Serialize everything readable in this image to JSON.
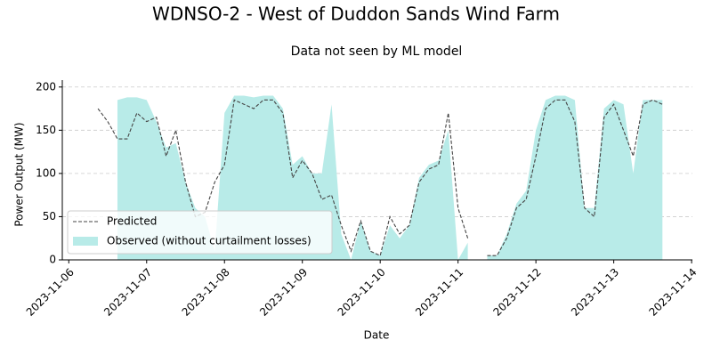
{
  "chart_data": {
    "type": "line-area",
    "title": "WDNSO-2 - West of Duddon Sands Wind Farm",
    "subtitle": "Data not seen by ML model",
    "x_label": "Date",
    "y_label": "Power Output (MW)",
    "xlim": [
      "2023-11-05T22:00",
      "2023-11-14T00:15"
    ],
    "xticks": [
      "2023-11-06",
      "2023-11-07",
      "2023-11-08",
      "2023-11-09",
      "2023-11-10",
      "2023-11-11",
      "2023-11-12",
      "2023-11-13",
      "2023-11-14"
    ],
    "ylim": [
      0,
      208
    ],
    "yticks": [
      0,
      50,
      100,
      150,
      200
    ],
    "grid": true,
    "legend": "lower left",
    "x": [
      "2023-11-06T09:00",
      "2023-11-06T12:00",
      "2023-11-06T15:00",
      "2023-11-06T18:00",
      "2023-11-06T21:00",
      "2023-11-07T00:00",
      "2023-11-07T03:00",
      "2023-11-07T06:00",
      "2023-11-07T09:00",
      "2023-11-07T12:00",
      "2023-11-07T15:00",
      "2023-11-07T18:00",
      "2023-11-07T21:00",
      "2023-11-08T00:00",
      "2023-11-08T03:00",
      "2023-11-08T06:00",
      "2023-11-08T09:00",
      "2023-11-08T12:00",
      "2023-11-08T15:00",
      "2023-11-08T18:00",
      "2023-11-08T21:00",
      "2023-11-09T00:00",
      "2023-11-09T03:00",
      "2023-11-09T06:00",
      "2023-11-09T09:00",
      "2023-11-09T12:00",
      "2023-11-09T15:00",
      "2023-11-09T18:00",
      "2023-11-09T21:00",
      "2023-11-10T00:00",
      "2023-11-10T03:00",
      "2023-11-10T06:00",
      "2023-11-10T09:00",
      "2023-11-10T12:00",
      "2023-11-10T15:00",
      "2023-11-10T18:00",
      "2023-11-10T21:00",
      "2023-11-11T00:00",
      "2023-11-11T03:00",
      "2023-11-11T06:00",
      "2023-11-11T09:00",
      "2023-11-11T12:00",
      "2023-11-11T15:00",
      "2023-11-11T18:00",
      "2023-11-11T21:00",
      "2023-11-12T00:00",
      "2023-11-12T03:00",
      "2023-11-12T06:00",
      "2023-11-12T09:00",
      "2023-11-12T12:00",
      "2023-11-12T15:00",
      "2023-11-12T18:00",
      "2023-11-12T21:00",
      "2023-11-13T00:00",
      "2023-11-13T03:00",
      "2023-11-13T06:00",
      "2023-11-13T09:00",
      "2023-11-13T12:00",
      "2023-11-13T15:00"
    ],
    "series": [
      {
        "name": "Predicted",
        "color": "#444444",
        "style": "dashed",
        "values": [
          175,
          160,
          140,
          140,
          170,
          160,
          165,
          120,
          150,
          90,
          50,
          55,
          90,
          110,
          185,
          180,
          175,
          185,
          185,
          170,
          95,
          115,
          100,
          70,
          75,
          40,
          10,
          45,
          10,
          5,
          50,
          30,
          40,
          90,
          105,
          110,
          170,
          60,
          25,
          null,
          5,
          5,
          25,
          60,
          70,
          120,
          175,
          185,
          185,
          160,
          60,
          50,
          165,
          180,
          150,
          120,
          180,
          185,
          180
        ]
      },
      {
        "name": "Observed (without curtailment losses)",
        "color": "#b8ebe8",
        "style": "area",
        "values": [
          185,
          null,
          185,
          188,
          188,
          185,
          160,
          130,
          135,
          90,
          60,
          50,
          10,
          170,
          190,
          190,
          188,
          190,
          190,
          175,
          110,
          120,
          100,
          100,
          180,
          30,
          0,
          45,
          10,
          5,
          40,
          25,
          40,
          95,
          110,
          115,
          150,
          0,
          20,
          null,
          5,
          5,
          30,
          65,
          80,
          150,
          185,
          190,
          190,
          185,
          60,
          60,
          175,
          185,
          180,
          100,
          185,
          185,
          185
        ]
      }
    ]
  }
}
